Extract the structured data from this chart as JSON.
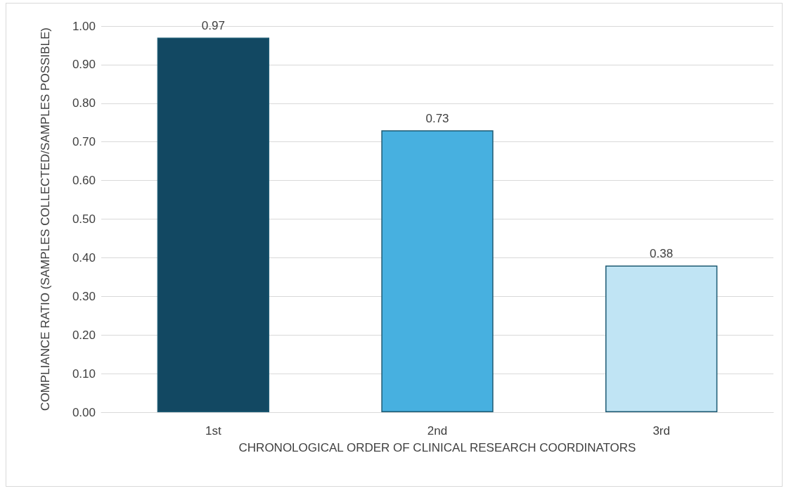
{
  "chart_data": {
    "type": "bar",
    "xlabel": "CHRONOLOGICAL ORDER OF CLINICAL RESEARCH COORDINATORS",
    "ylabel": "COMPLIANCE RATIO (SAMPLES COLLECTED/SAMPLES POSSIBLE)",
    "categories": [
      "1st",
      "2nd",
      "3rd"
    ],
    "values": [
      0.97,
      0.73,
      0.38
    ],
    "colors": [
      "#124862",
      "#47b0e0",
      "#c0e4f4"
    ],
    "ylim": [
      0,
      1
    ],
    "yticks": [
      {
        "value": 0,
        "label": "0.00"
      },
      {
        "value": 0.1,
        "label": "0.10"
      },
      {
        "value": 0.2,
        "label": "0.20"
      },
      {
        "value": 0.3,
        "label": "0.30"
      },
      {
        "value": 0.4,
        "label": "0.40"
      },
      {
        "value": 0.5,
        "label": "0.50"
      },
      {
        "value": 0.6,
        "label": "0.60"
      },
      {
        "value": 0.7,
        "label": "0.70"
      },
      {
        "value": 0.8,
        "label": "0.80"
      },
      {
        "value": 0.9,
        "label": "0.90"
      },
      {
        "value": 1,
        "label": "1.00"
      }
    ],
    "grid": "y",
    "data_labels": true
  }
}
